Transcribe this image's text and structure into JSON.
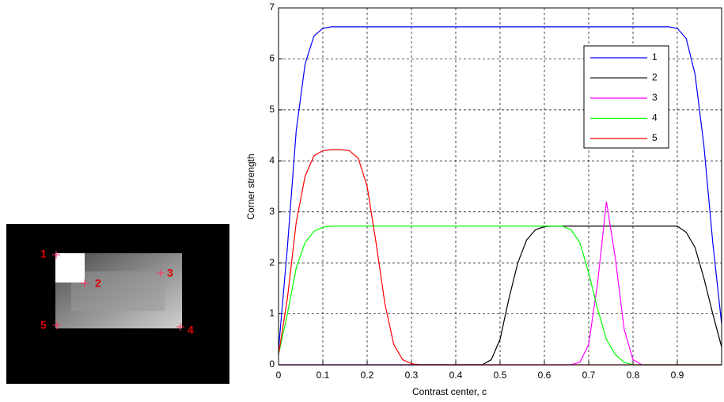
{
  "image_labels": [
    "1",
    "2",
    "3",
    "4",
    "5"
  ],
  "chart_data": {
    "type": "line",
    "xlabel": "Contrast center, c",
    "ylabel": "Corner strength",
    "x": [
      0,
      0.02,
      0.04,
      0.06,
      0.08,
      0.1,
      0.12,
      0.14,
      0.16,
      0.18,
      0.2,
      0.22,
      0.24,
      0.26,
      0.28,
      0.3,
      0.32,
      0.34,
      0.36,
      0.38,
      0.4,
      0.42,
      0.44,
      0.46,
      0.48,
      0.5,
      0.52,
      0.54,
      0.56,
      0.58,
      0.6,
      0.62,
      0.64,
      0.66,
      0.68,
      0.7,
      0.72,
      0.74,
      0.76,
      0.78,
      0.8,
      0.82,
      0.84,
      0.86,
      0.88,
      0.9,
      0.92,
      0.94,
      0.96,
      0.98,
      1
    ],
    "series": [
      {
        "name": "1",
        "color": "#0000ff",
        "values": [
          0.3,
          2.3,
          4.6,
          5.9,
          6.45,
          6.6,
          6.63,
          6.63,
          6.63,
          6.63,
          6.63,
          6.63,
          6.63,
          6.63,
          6.63,
          6.63,
          6.63,
          6.63,
          6.63,
          6.63,
          6.63,
          6.63,
          6.63,
          6.63,
          6.63,
          6.63,
          6.63,
          6.63,
          6.63,
          6.63,
          6.63,
          6.63,
          6.63,
          6.63,
          6.63,
          6.63,
          6.63,
          6.63,
          6.63,
          6.63,
          6.63,
          6.63,
          6.63,
          6.63,
          6.63,
          6.6,
          6.4,
          5.7,
          4.3,
          2.4,
          0.8
        ]
      },
      {
        "name": "2",
        "color": "#000000",
        "values": [
          0,
          0,
          0,
          0,
          0,
          0,
          0,
          0,
          0,
          0,
          0,
          0,
          0,
          0,
          0,
          0,
          0,
          0,
          0,
          0,
          0,
          0,
          0,
          0,
          0.1,
          0.5,
          1.3,
          2.0,
          2.45,
          2.65,
          2.71,
          2.72,
          2.72,
          2.72,
          2.72,
          2.72,
          2.72,
          2.72,
          2.72,
          2.72,
          2.72,
          2.72,
          2.72,
          2.72,
          2.72,
          2.72,
          2.6,
          2.3,
          1.7,
          1.0,
          0.35
        ]
      },
      {
        "name": "3",
        "color": "#ff00ff",
        "values": [
          0,
          0,
          0,
          0,
          0,
          0,
          0,
          0,
          0,
          0,
          0,
          0,
          0,
          0,
          0,
          0,
          0,
          0,
          0,
          0,
          0,
          0,
          0,
          0,
          0,
          0,
          0,
          0,
          0,
          0,
          0,
          0,
          0,
          0,
          0.05,
          0.4,
          1.6,
          3.2,
          2.1,
          0.7,
          0.1,
          0,
          0,
          0,
          0,
          0,
          0,
          0,
          0,
          0,
          0
        ]
      },
      {
        "name": "4",
        "color": "#00ff00",
        "values": [
          0.2,
          1.0,
          1.9,
          2.4,
          2.62,
          2.7,
          2.72,
          2.72,
          2.72,
          2.72,
          2.72,
          2.72,
          2.72,
          2.72,
          2.72,
          2.72,
          2.72,
          2.72,
          2.72,
          2.72,
          2.72,
          2.72,
          2.72,
          2.72,
          2.72,
          2.72,
          2.72,
          2.72,
          2.72,
          2.72,
          2.72,
          2.72,
          2.72,
          2.65,
          2.4,
          1.8,
          1.1,
          0.5,
          0.2,
          0.05,
          0,
          0,
          0,
          0,
          0,
          0,
          0,
          0,
          0,
          0,
          0
        ]
      },
      {
        "name": "5",
        "color": "#ff0000",
        "values": [
          0.2,
          1.3,
          2.8,
          3.7,
          4.1,
          4.2,
          4.22,
          4.22,
          4.2,
          4.05,
          3.5,
          2.4,
          1.2,
          0.4,
          0.1,
          0.02,
          0,
          0,
          0,
          0,
          0,
          0,
          0,
          0,
          0,
          0,
          0,
          0,
          0,
          0,
          0,
          0,
          0,
          0,
          0,
          0,
          0,
          0,
          0,
          0,
          0,
          0,
          0,
          0,
          0,
          0,
          0,
          0,
          0,
          0,
          0
        ]
      }
    ],
    "xlim": [
      0,
      1
    ],
    "ylim": [
      0,
      7
    ],
    "xticks": [
      0,
      0.1,
      0.2,
      0.3,
      0.4,
      0.5,
      0.6,
      0.7,
      0.8,
      0.9
    ],
    "yticks": [
      0,
      1,
      2,
      3,
      4,
      5,
      6,
      7
    ],
    "grid": true,
    "legend": "upper right"
  }
}
